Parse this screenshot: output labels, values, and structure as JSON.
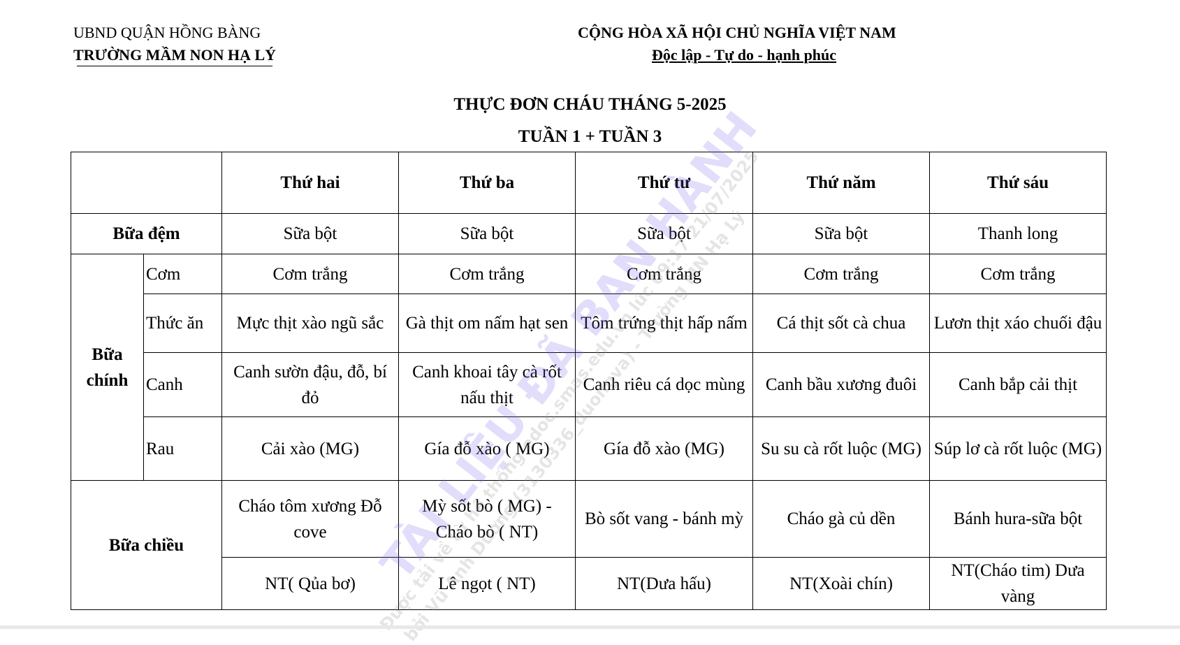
{
  "header": {
    "left_line1": "UBND QUẬN HỒNG BÀNG",
    "left_line2": "TRƯỜNG MẦM NON HẠ LÝ",
    "right_line1": "CỘNG HÒA XÃ HỘI CHỦ NGHĨA VIỆT NAM",
    "right_line2": "Độc lập - Tự do - hạnh phúc"
  },
  "title": "THỰC ĐƠN CHÁU THÁNG  5-2025",
  "subtitle": "TUẦN 1 + TUẦN 3",
  "table": {
    "days": [
      "Thứ hai",
      "Thứ ba",
      "Thứ tư",
      "Thứ năm",
      "Thứ sáu"
    ],
    "bua_dem": {
      "label": "Bữa đệm",
      "values": [
        "Sữa bột",
        "Sữa bột",
        "Sữa bột",
        "Sữa bột",
        "Thanh long"
      ]
    },
    "bua_chinh": {
      "label": "Bữa chính",
      "rows": [
        {
          "label": "Cơm",
          "values": [
            "Cơm trắng",
            "Cơm trắng",
            "Cơm trắng",
            "Cơm trắng",
            "Cơm trắng"
          ]
        },
        {
          "label": "Thức ăn",
          "values": [
            "Mực thịt xào ngũ sắc",
            "Gà thịt om nấm hạt sen",
            "Tôm trứng thịt hấp nấm",
            "Cá thịt sốt cà chua",
            "Lươn thịt xáo chuối đậu"
          ]
        },
        {
          "label": "Canh",
          "values": [
            "Canh sườn đậu, đỗ, bí đỏ",
            "Canh khoai tây cà rốt nấu thịt",
            "Canh riêu cá dọc mùng",
            "Canh bầu xương đuôi",
            "Canh bắp cải thịt"
          ]
        },
        {
          "label": "Rau",
          "values": [
            "Cải xào (MG)",
            "Gía đỗ xào ( MG)",
            "Gía đỗ xào (MG)",
            "Su su cà rốt luộc (MG)",
            "Súp lơ cà rốt luộc (MG)"
          ]
        }
      ]
    },
    "bua_chieu": {
      "label": "Bữa chiều",
      "row1": [
        "Cháo tôm xương Đỗ cove",
        "Mỳ sốt bò ( MG) - Cháo bò ( NT)",
        "Bò sốt vang - bánh mỳ",
        "Cháo gà củ dền",
        "Bánh hura-sữa bột"
      ],
      "row2": [
        "NT( Qủa bơ)",
        "Lê ngọt ( NT)",
        "NT(Dưa hấu)",
        "NT(Xoài chín)",
        "NT(Cháo tim) Dưa vàng"
      ]
    }
  },
  "watermark": {
    "main": "TÀI LIỆU ĐÃ BAN HÀNH",
    "line1": "Được tải về từ hệ thống edoc.smas.edu.vn lúc 09:17 21/07/2025",
    "line2": "bởi Vũ Anh Dương (3130336_duongva) - Trường MN Hạ Lý",
    "color": "#7864e6"
  }
}
